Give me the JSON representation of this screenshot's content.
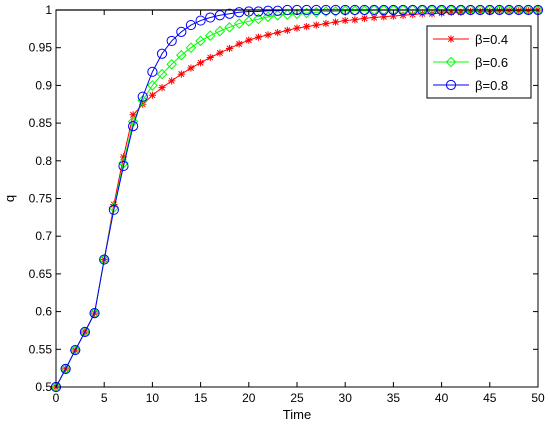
{
  "chart_data": {
    "type": "line",
    "title": "",
    "xlabel": "Time",
    "ylabel": "q",
    "xlim": [
      0,
      50
    ],
    "ylim": [
      0.5,
      1
    ],
    "xticks": [
      0,
      5,
      10,
      15,
      20,
      25,
      30,
      35,
      40,
      45,
      50
    ],
    "yticks": [
      0.5,
      0.55,
      0.6,
      0.65,
      0.7,
      0.75,
      0.8,
      0.85,
      0.9,
      0.95,
      1
    ],
    "xtick_labels": [
      "0",
      "5",
      "10",
      "15",
      "20",
      "25",
      "30",
      "35",
      "40",
      "45",
      "50"
    ],
    "ytick_labels": [
      "0.5",
      "0.55",
      "0.6",
      "0.65",
      "0.7",
      "0.75",
      "0.8",
      "0.85",
      "0.9",
      "0.95",
      "1"
    ],
    "grid": false,
    "legend_position": "top-right",
    "reference_line": {
      "y": 1,
      "color": "#000000"
    },
    "x": [
      0,
      1,
      2,
      3,
      4,
      5,
      6,
      7,
      8,
      9,
      10,
      11,
      12,
      13,
      14,
      15,
      16,
      17,
      18,
      19,
      20,
      21,
      22,
      23,
      24,
      25,
      26,
      27,
      28,
      29,
      30,
      31,
      32,
      33,
      34,
      35,
      36,
      37,
      38,
      39,
      40,
      41,
      42,
      43,
      44,
      45,
      46,
      47,
      48,
      49,
      50
    ],
    "series": [
      {
        "name": "β=0.4",
        "color": "#ff0000",
        "marker": "star",
        "values": [
          0.5,
          0.524,
          0.549,
          0.573,
          0.598,
          0.669,
          0.742,
          0.805,
          0.861,
          0.875,
          0.887,
          0.897,
          0.906,
          0.915,
          0.923,
          0.93,
          0.937,
          0.943,
          0.949,
          0.955,
          0.96,
          0.964,
          0.967,
          0.97,
          0.973,
          0.976,
          0.978,
          0.98,
          0.982,
          0.984,
          0.986,
          0.987,
          0.989,
          0.99,
          0.991,
          0.992,
          0.993,
          0.994,
          0.995,
          0.995,
          0.996,
          0.997,
          0.997,
          0.998,
          0.998,
          0.998,
          0.999,
          0.999,
          0.999,
          0.999,
          1.0
        ]
      },
      {
        "name": "β=0.6",
        "color": "#00ff00",
        "marker": "diamond",
        "values": [
          0.5,
          0.524,
          0.549,
          0.573,
          0.598,
          0.669,
          0.738,
          0.797,
          0.852,
          0.88,
          0.9,
          0.915,
          0.928,
          0.94,
          0.95,
          0.959,
          0.966,
          0.972,
          0.977,
          0.982,
          0.985,
          0.988,
          0.991,
          0.993,
          0.994,
          0.995,
          0.996,
          0.997,
          0.998,
          0.998,
          0.999,
          0.999,
          0.999,
          1.0,
          1.0,
          1.0,
          1.0,
          1.0,
          1.0,
          1.0,
          1.0,
          1.0,
          1.0,
          1.0,
          1.0,
          1.0,
          1.0,
          1.0,
          1.0,
          1.0,
          1.0
        ]
      },
      {
        "name": "β=0.8",
        "color": "#0000ff",
        "marker": "circle",
        "values": [
          0.5,
          0.524,
          0.549,
          0.573,
          0.598,
          0.669,
          0.735,
          0.793,
          0.846,
          0.885,
          0.918,
          0.942,
          0.959,
          0.971,
          0.98,
          0.986,
          0.99,
          0.993,
          0.995,
          0.997,
          0.998,
          0.998,
          0.999,
          0.999,
          1.0,
          1.0,
          1.0,
          1.0,
          1.0,
          1.0,
          1.0,
          1.0,
          1.0,
          1.0,
          1.0,
          1.0,
          1.0,
          1.0,
          1.0,
          1.0,
          1.0,
          1.0,
          1.0,
          1.0,
          1.0,
          1.0,
          1.0,
          1.0,
          1.0,
          1.0,
          1.0
        ]
      }
    ]
  }
}
